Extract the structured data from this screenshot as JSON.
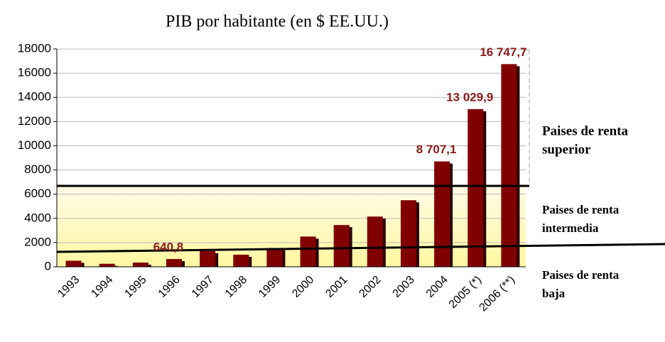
{
  "chart_data": {
    "type": "bar",
    "title": "PIB por habitante (en $ EE.UU.)",
    "categories": [
      "1993",
      "1994",
      "1995",
      "1996",
      "1997",
      "1998",
      "1999",
      "2000",
      "2001",
      "2002",
      "2003",
      "2004",
      "2005 (*)",
      "2006 (**)"
    ],
    "values": [
      500,
      250,
      350,
      640.8,
      1300,
      1000,
      1550,
      2500,
      3450,
      4150,
      5500,
      8707.1,
      13029.9,
      16747.7
    ],
    "value_labels": [
      null,
      null,
      null,
      "640,8",
      null,
      null,
      null,
      null,
      null,
      null,
      null,
      "8 707,1",
      "13 029,9",
      "16 747,7"
    ],
    "color": "#800000",
    "ylim": [
      0,
      18000
    ],
    "yticks": [
      0,
      2000,
      4000,
      6000,
      8000,
      10000,
      12000,
      14000,
      16000,
      18000
    ],
    "grid": true,
    "annotations": [
      [
        "Paises de renta",
        "superior"
      ],
      [
        "Paises de renta",
        "intermedia"
      ],
      [
        "Paises de renta",
        "baja"
      ]
    ]
  }
}
